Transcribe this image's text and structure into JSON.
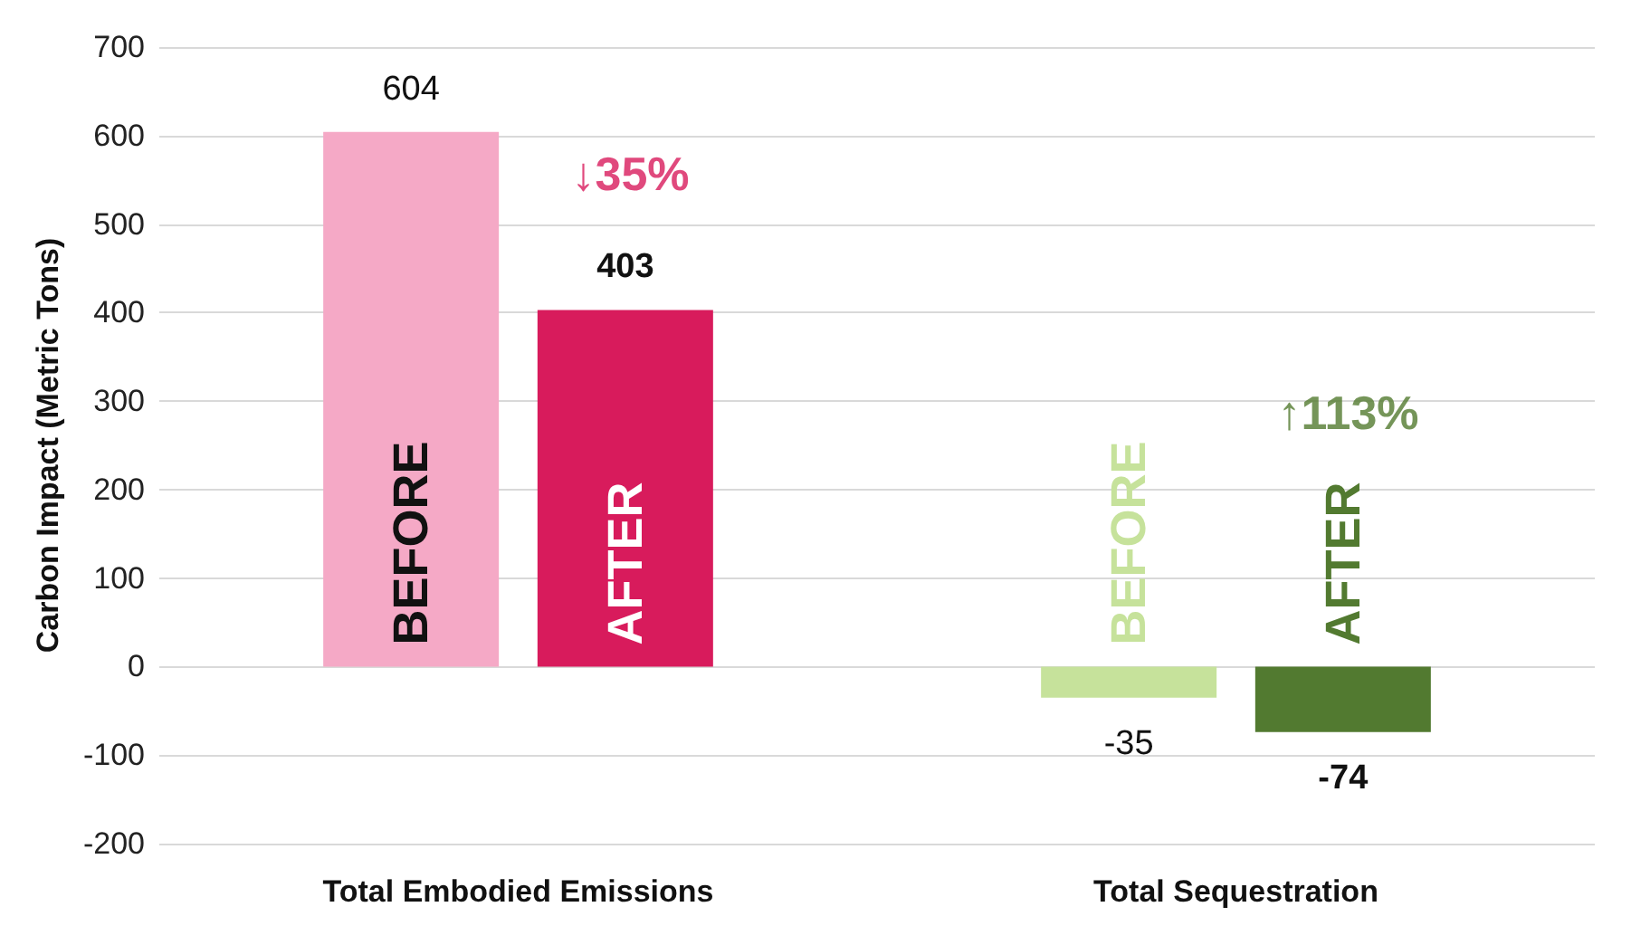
{
  "chart_data": {
    "type": "bar",
    "ylabel": "Carbon Impact (Metric Tons)",
    "categories": [
      "Total Embodied Emissions",
      "Total Sequestration"
    ],
    "series": [
      {
        "name": "BEFORE",
        "colors": [
          "#f5a9c6",
          "#c6e29b"
        ],
        "values": [
          604,
          -35
        ]
      },
      {
        "name": "AFTER",
        "colors": [
          "#d81b5c",
          "#527a30"
        ],
        "values": [
          403,
          -74
        ]
      }
    ],
    "ylim": [
      -200,
      700
    ],
    "yticks": [
      -200,
      -100,
      0,
      100,
      200,
      300,
      400,
      500,
      600,
      700
    ],
    "grid": "y",
    "legend": false,
    "data_labels": true,
    "annotations": [
      "↓35%",
      "↑113%"
    ]
  }
}
